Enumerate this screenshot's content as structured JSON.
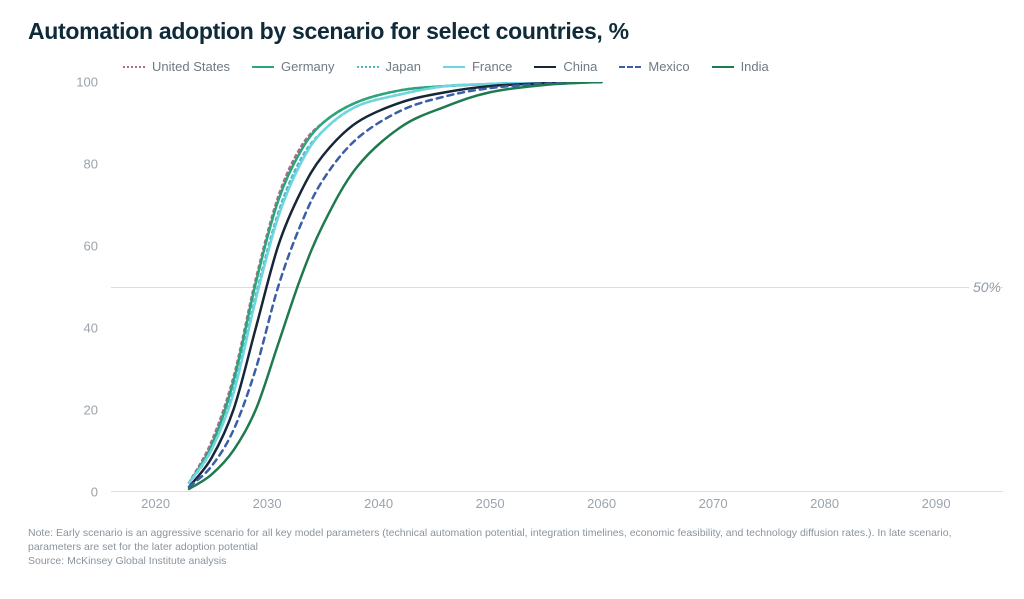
{
  "title": "Automation adoption by scenario for select countries, %",
  "chart": {
    "type": "line",
    "xlim": [
      2016,
      2096
    ],
    "ylim": [
      0,
      100
    ],
    "xticks": [
      2020,
      2030,
      2040,
      2050,
      2060,
      2070,
      2080,
      2090
    ],
    "yticks": [
      0,
      20,
      40,
      60,
      80,
      100
    ],
    "reference_line": {
      "y": 50,
      "label": "50%",
      "color": "#d9dee3"
    },
    "axis_label_color": "#9aa3ad",
    "axis_label_fontsize": 13,
    "background_color": "#ffffff",
    "series": [
      {
        "name": "United States",
        "color": "#b06a8f",
        "dash": "dotted",
        "width": 2.5,
        "xs": [
          2023,
          2025,
          2027,
          2029,
          2031,
          2033,
          2035,
          2038,
          2042,
          2046,
          2050,
          2055,
          2060
        ],
        "ys": [
          2,
          12,
          28,
          52,
          72,
          84,
          90,
          95,
          98,
          99,
          99.5,
          100,
          100
        ]
      },
      {
        "name": "Germany",
        "color": "#2aa57a",
        "dash": "solid",
        "width": 2.5,
        "xs": [
          2023,
          2025,
          2027,
          2029,
          2031,
          2033,
          2035,
          2038,
          2042,
          2046,
          2050,
          2055,
          2060
        ],
        "ys": [
          2,
          11,
          27,
          51,
          71,
          83,
          90,
          95,
          98,
          99,
          99.5,
          100,
          100
        ]
      },
      {
        "name": "Japan",
        "color": "#4fb6c9",
        "dash": "dotted",
        "width": 2.5,
        "xs": [
          2023,
          2025,
          2027,
          2029,
          2031,
          2033,
          2035,
          2038,
          2042,
          2046,
          2050,
          2055,
          2060
        ],
        "ys": [
          2,
          10,
          25,
          48,
          68,
          81,
          88,
          94,
          97,
          99,
          99.5,
          100,
          100
        ]
      },
      {
        "name": "France",
        "color": "#6fd5de",
        "dash": "solid",
        "width": 2.5,
        "xs": [
          2023,
          2025,
          2027,
          2029,
          2031,
          2033,
          2035,
          2038,
          2042,
          2046,
          2050,
          2055,
          2060
        ],
        "ys": [
          2,
          10,
          24,
          47,
          67,
          80,
          88,
          94,
          97,
          99,
          99.5,
          100,
          100
        ]
      },
      {
        "name": "China",
        "color": "#16263a",
        "dash": "solid",
        "width": 2.5,
        "xs": [
          2023,
          2025,
          2027,
          2029,
          2031,
          2033,
          2035,
          2038,
          2042,
          2046,
          2050,
          2055,
          2060
        ],
        "ys": [
          1,
          8,
          20,
          40,
          60,
          73,
          82,
          90,
          95,
          97.5,
          99,
          99.7,
          100
        ]
      },
      {
        "name": "Mexico",
        "color": "#3a5fa6",
        "dash": "dashed",
        "width": 2.5,
        "xs": [
          2023,
          2025,
          2027,
          2029,
          2031,
          2033,
          2035,
          2038,
          2042,
          2046,
          2050,
          2055,
          2060
        ],
        "ys": [
          1,
          6,
          15,
          30,
          50,
          65,
          76,
          86,
          93,
          96.5,
          98.5,
          99.6,
          100
        ]
      },
      {
        "name": "India",
        "color": "#1f7a4f",
        "dash": "solid",
        "width": 2.5,
        "xs": [
          2023,
          2025,
          2027,
          2029,
          2031,
          2033,
          2035,
          2038,
          2042,
          2046,
          2050,
          2055,
          2060
        ],
        "ys": [
          0.5,
          4,
          10,
          20,
          36,
          52,
          65,
          79,
          89,
          94,
          97.5,
          99.3,
          100
        ]
      }
    ]
  },
  "footnote": {
    "line1": "Note: Early scenario is an aggressive scenario for all key model parameters (technical automation potential, integration timelines, economic feasibility, and technology diffusion rates.). In late scenario, parameters are set for the later adoption potential",
    "line2": "Source: McKinsey Global Institute analysis"
  }
}
